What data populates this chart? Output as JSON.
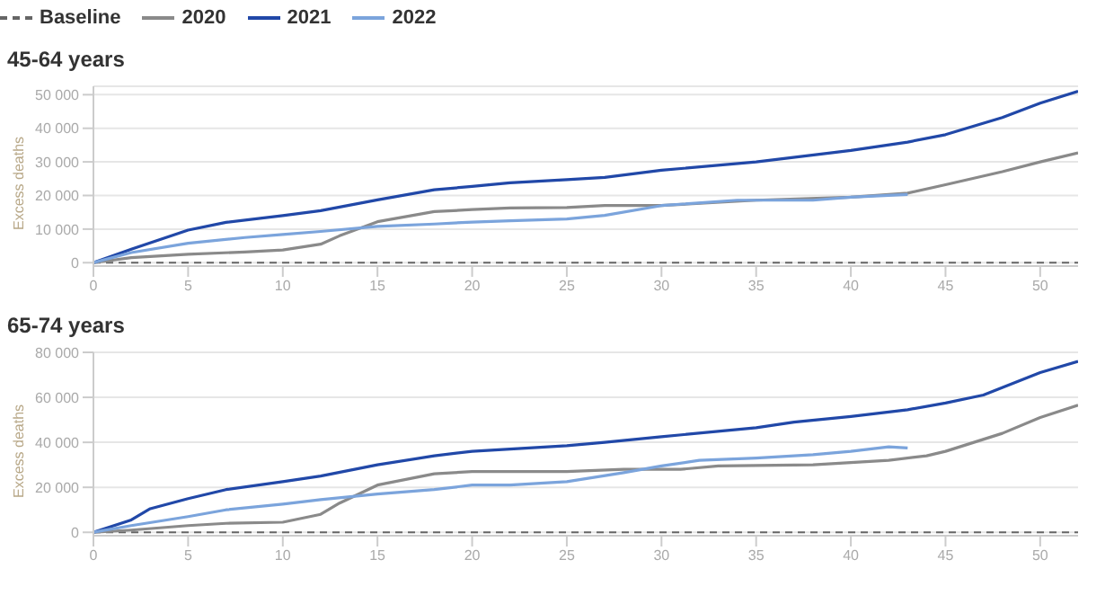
{
  "chart_data": [
    {
      "type": "line",
      "title": "45-64 years",
      "ylabel": "Excess deaths",
      "xlim": [
        0,
        52
      ],
      "xticks": [
        0,
        5,
        10,
        15,
        20,
        25,
        30,
        35,
        40,
        45,
        50
      ],
      "ylim": [
        -1000,
        52500
      ],
      "yticks": [
        0,
        {
          "value": 10000,
          "label": "10 000"
        },
        {
          "value": 20000,
          "label": "20 000"
        },
        {
          "value": 30000,
          "label": "30 000"
        },
        {
          "value": 40000,
          "label": "40 000"
        },
        {
          "value": 50000,
          "label": "50 000"
        }
      ],
      "grid": "y",
      "legend": "top left",
      "marker": "none",
      "line_style": "solid",
      "series": [
        {
          "name": "Baseline",
          "color": "#666666",
          "line_style": "dashed",
          "x": [
            0,
            52
          ],
          "values": [
            0,
            0
          ]
        },
        {
          "name": "2020",
          "color": "#8a8a8a",
          "x": [
            0,
            2,
            5,
            8,
            10,
            12,
            13,
            15,
            18,
            20,
            22,
            25,
            27,
            30,
            35,
            40,
            43,
            45,
            48,
            50,
            52
          ],
          "values": [
            0,
            1500,
            2500,
            3200,
            3800,
            5500,
            8000,
            12200,
            15200,
            15800,
            16300,
            16400,
            17000,
            17000,
            18600,
            19500,
            20700,
            23200,
            27100,
            30000,
            32700
          ]
        },
        {
          "name": "2021",
          "color": "#2148a8",
          "x": [
            0,
            2,
            5,
            7,
            10,
            12,
            15,
            18,
            20,
            22,
            25,
            27,
            30,
            35,
            40,
            43,
            45,
            48,
            50,
            52
          ],
          "values": [
            0,
            4000,
            9700,
            12000,
            14000,
            15500,
            18700,
            21700,
            22700,
            23800,
            24700,
            25400,
            27500,
            30000,
            33400,
            35900,
            38100,
            43200,
            47500,
            51000
          ]
        },
        {
          "name": "2022",
          "color": "#7ba4dc",
          "x": [
            0,
            2,
            5,
            8,
            10,
            12,
            15,
            18,
            20,
            22,
            25,
            27,
            30,
            34,
            38,
            40,
            43
          ],
          "values": [
            0,
            3000,
            5800,
            7500,
            8400,
            9300,
            10800,
            11500,
            12100,
            12500,
            13000,
            14100,
            17000,
            18600,
            18600,
            19500,
            20300
          ]
        }
      ]
    },
    {
      "type": "line",
      "title": "65-74 years",
      "ylabel": "Excess deaths",
      "xlim": [
        0,
        52
      ],
      "xticks": [
        0,
        5,
        10,
        15,
        20,
        25,
        30,
        35,
        40,
        45,
        50
      ],
      "ylim": [
        -1500,
        80000
      ],
      "yticks": [
        0,
        {
          "value": 20000,
          "label": "20 000"
        },
        {
          "value": 40000,
          "label": "40 000"
        },
        {
          "value": 60000,
          "label": "60 000"
        },
        {
          "value": 80000,
          "label": "80 000"
        }
      ],
      "grid": "y",
      "marker": "none",
      "line_style": "solid",
      "series": [
        {
          "color": "#666666",
          "line_style": "dashed",
          "x": [
            0,
            52
          ],
          "values": [
            0,
            0
          ]
        },
        {
          "color": "#8a8a8a",
          "x": [
            0,
            2,
            5,
            7,
            10,
            12,
            13,
            15,
            18,
            20,
            25,
            28,
            31,
            33,
            38,
            42,
            44,
            45,
            48,
            50,
            52
          ],
          "values": [
            0,
            1000,
            3000,
            4000,
            4500,
            8000,
            13000,
            21000,
            26000,
            27000,
            27000,
            28000,
            28000,
            29500,
            30000,
            32000,
            34000,
            36000,
            44000,
            51000,
            56500
          ]
        },
        {
          "color": "#2148a8",
          "x": [
            0,
            2,
            3,
            5,
            7,
            10,
            12,
            15,
            18,
            20,
            22,
            25,
            27,
            30,
            35,
            37,
            40,
            43,
            45,
            47,
            50,
            52
          ],
          "values": [
            0,
            5500,
            10500,
            15000,
            19000,
            22500,
            25000,
            30000,
            34000,
            36000,
            37000,
            38500,
            40000,
            42500,
            46500,
            49000,
            51500,
            54500,
            57500,
            61000,
            71000,
            76000
          ]
        },
        {
          "color": "#7ba4dc",
          "x": [
            0,
            2,
            5,
            7,
            10,
            12,
            15,
            18,
            20,
            22,
            25,
            28,
            30,
            32,
            35,
            38,
            40,
            42,
            43
          ],
          "values": [
            0,
            3000,
            7000,
            10000,
            12500,
            14500,
            17000,
            19000,
            21000,
            21000,
            22500,
            26500,
            29500,
            32000,
            33000,
            34500,
            36000,
            38000,
            37500
          ]
        }
      ]
    }
  ]
}
